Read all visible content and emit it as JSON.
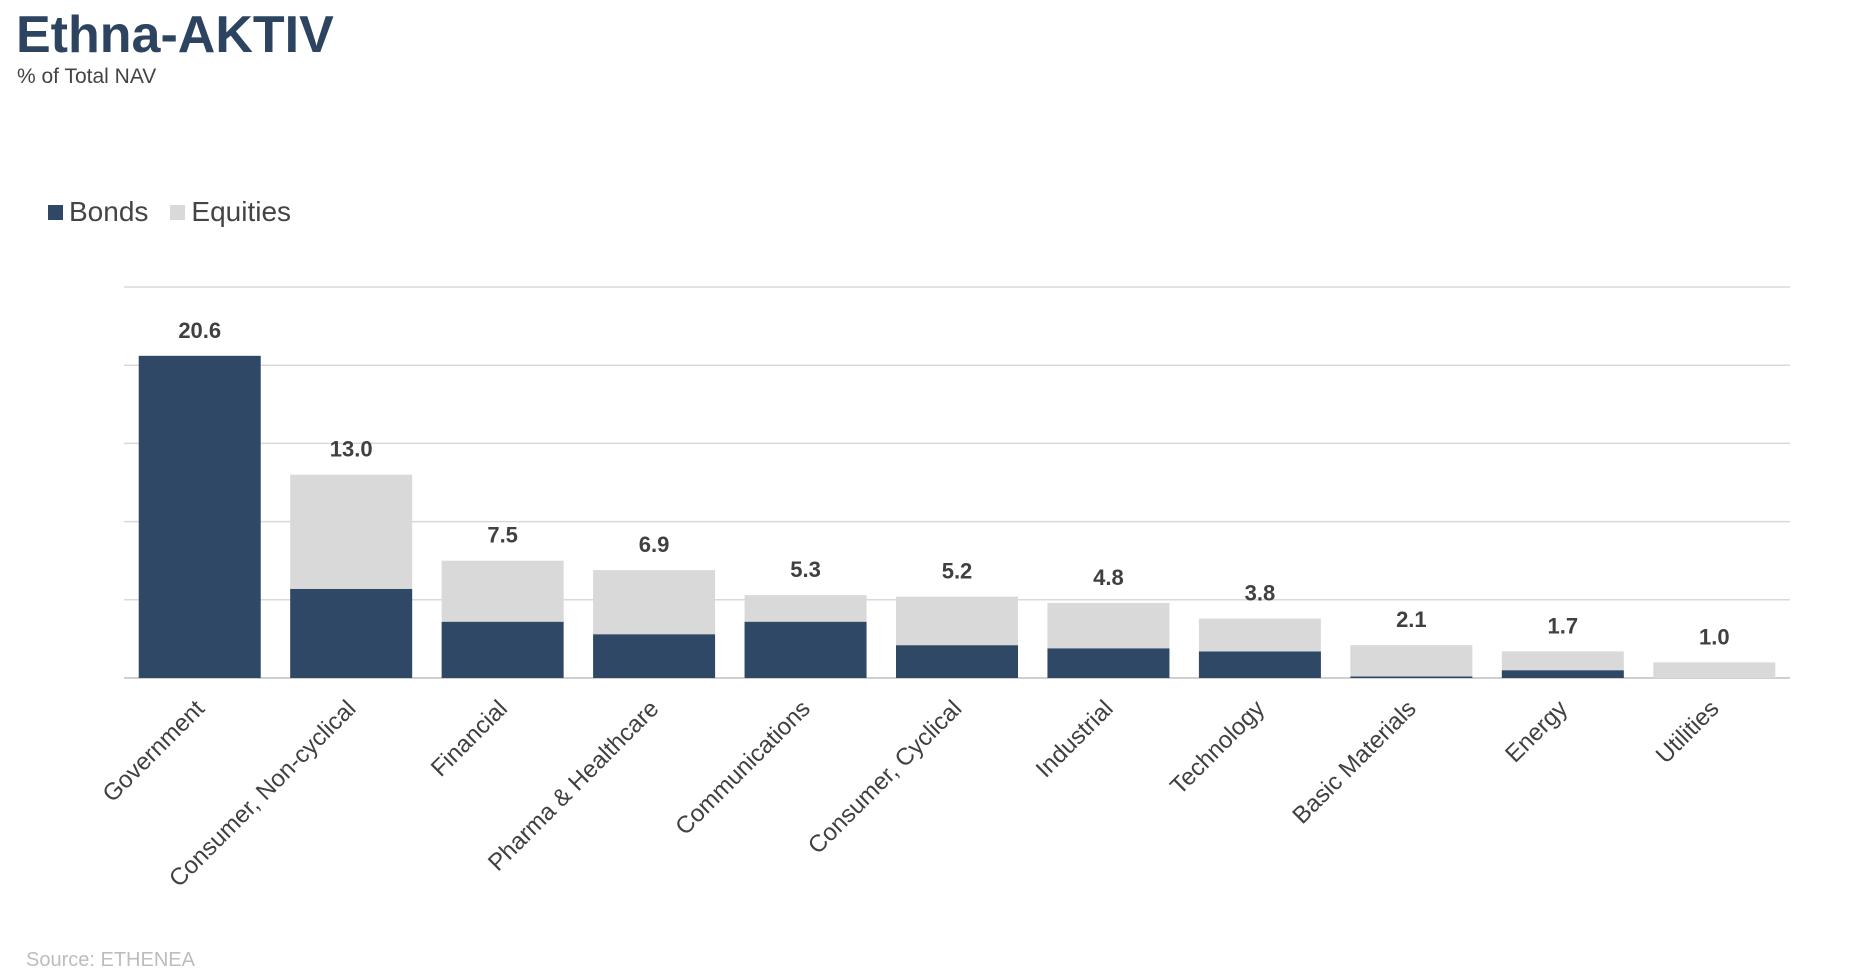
{
  "title": "Ethna-AKTIV",
  "subtitle": "% of Total NAV",
  "source": "Source: ETHENEA",
  "chart_data": {
    "type": "bar",
    "stacked": true,
    "categories": [
      "Government",
      "Consumer, Non-cyclical",
      "Financial",
      "Pharma & Healthcare",
      "Communications",
      "Consumer, Cyclical",
      "Industrial",
      "Technology",
      "Basic Materials",
      "Energy",
      "Utilities"
    ],
    "series": [
      {
        "name": "Bonds",
        "color": "#2e4865",
        "values": [
          20.6,
          5.7,
          3.6,
          2.8,
          3.6,
          2.1,
          1.9,
          1.7,
          0.1,
          0.5,
          0.0
        ]
      },
      {
        "name": "Equities",
        "color": "#d9d9d9",
        "values": [
          0.0,
          7.3,
          3.9,
          4.1,
          1.7,
          3.1,
          2.9,
          2.1,
          2.0,
          1.2,
          1.0
        ]
      }
    ],
    "totals": [
      "20.6",
      "13.0",
      "7.5",
      "6.9",
      "5.3",
      "5.2",
      "4.8",
      "3.8",
      "2.1",
      "1.7",
      "1.0"
    ],
    "ylim": [
      0,
      25
    ],
    "ytick_step": 5,
    "grid": true,
    "legend_position": "top-left",
    "xlabel": "",
    "ylabel": ""
  }
}
